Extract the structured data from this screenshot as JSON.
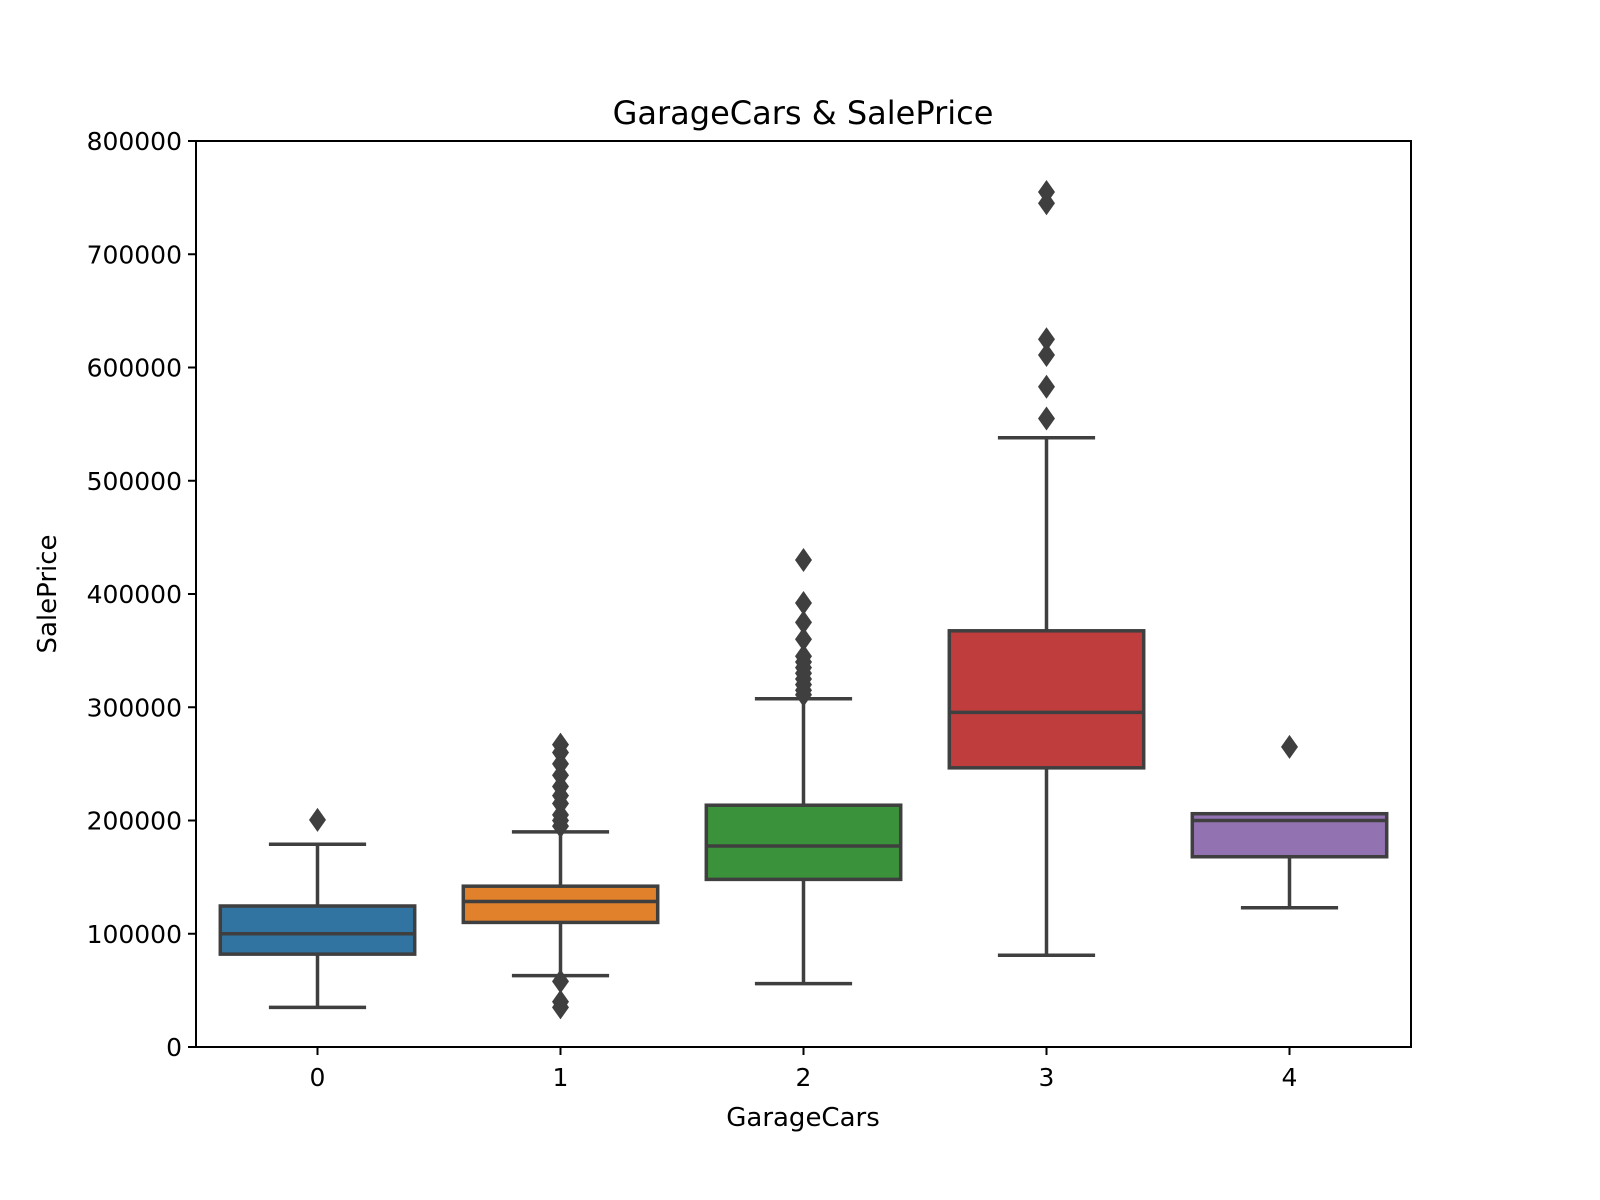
{
  "chart_data": {
    "type": "box",
    "title": "GarageCars & SalePrice",
    "xlabel": "GarageCars",
    "ylabel": "SalePrice",
    "ylim": [
      0,
      800000
    ],
    "y_ticks": [
      0,
      100000,
      200000,
      300000,
      400000,
      500000,
      600000,
      700000,
      800000
    ],
    "y_tick_labels": [
      "0",
      "100000",
      "200000",
      "300000",
      "400000",
      "500000",
      "600000",
      "700000",
      "800000"
    ],
    "categories": [
      "0",
      "1",
      "2",
      "3",
      "4"
    ],
    "grid": false,
    "legend": "none",
    "boxes": [
      {
        "category": "0",
        "color": "#3274a1",
        "whisker_low": 35000,
        "q1": 82000,
        "median": 100000,
        "q3": 124500,
        "whisker_high": 179000,
        "outliers": [
          200500
        ]
      },
      {
        "category": "1",
        "color": "#e1812c",
        "whisker_low": 63000,
        "q1": 110000,
        "median": 128500,
        "q3": 142000,
        "whisker_high": 190000,
        "outliers": [
          35000,
          40000,
          58000,
          195000,
          200000,
          205000,
          215000,
          222000,
          230000,
          240000,
          250000,
          260000,
          267000
        ]
      },
      {
        "category": "2",
        "color": "#3a923a",
        "whisker_low": 56000,
        "q1": 148000,
        "median": 177500,
        "q3": 213500,
        "whisker_high": 307500,
        "outliers": [
          311000,
          315000,
          320000,
          325000,
          330000,
          335000,
          340000,
          345000,
          360000,
          375000,
          392000,
          430000
        ]
      },
      {
        "category": "3",
        "color": "#c03d3e",
        "whisker_low": 81000,
        "q1": 246500,
        "median": 295500,
        "q3": 367500,
        "whisker_high": 538000,
        "outliers": [
          555000,
          583000,
          611000,
          625000,
          745000,
          755000
        ]
      },
      {
        "category": "4",
        "color": "#9372b2",
        "whisker_low": 123000,
        "q1": 168000,
        "median": 200000,
        "q3": 206000,
        "whisker_high": 206000,
        "outliers": [
          265000
        ]
      }
    ]
  }
}
